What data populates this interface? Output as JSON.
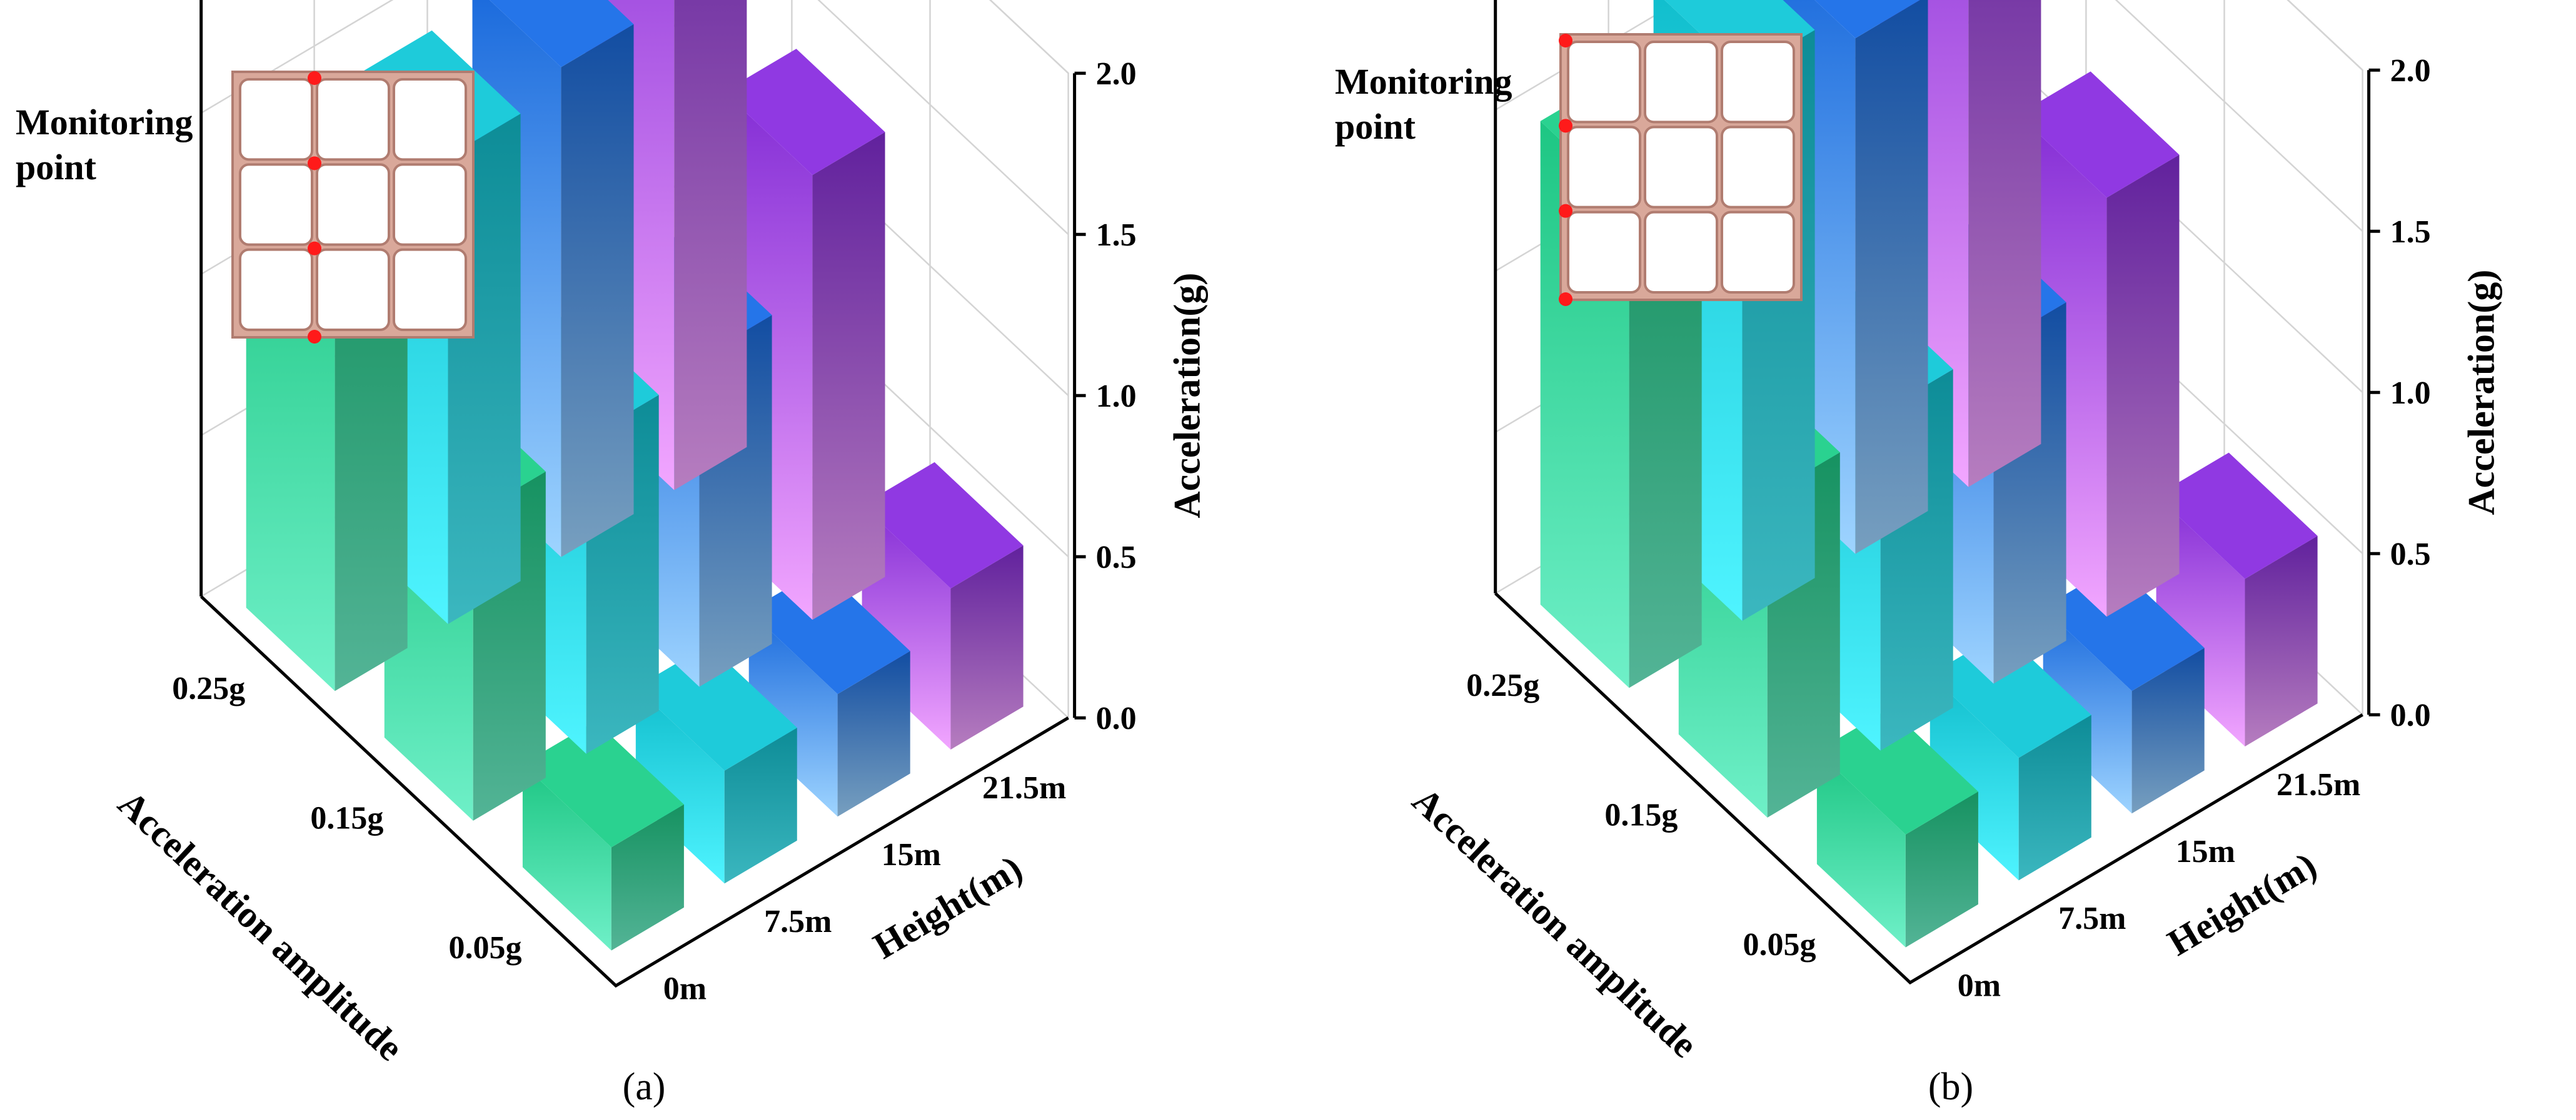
{
  "chart_data": [
    {
      "type": "bar",
      "panel_label": "(a)",
      "inset_title_lines": [
        "Monitoring",
        "point"
      ],
      "monitoring_points_side": "center-left column",
      "zlabel": "Acceleration(g)",
      "zlim": [
        0,
        2.0
      ],
      "zticks": [
        "0.0",
        "0.5",
        "1.0",
        "1.5",
        "2.0"
      ],
      "xlabel": "Acceleration amplitude",
      "x_categories": [
        "0.25g",
        "0.15g",
        "0.05g"
      ],
      "ylabel": "Height(m)",
      "y_categories": [
        "0m",
        "7.5m",
        "15m",
        "21.5m"
      ],
      "series": [
        {
          "x": "0.25g",
          "values": [
            1.37,
            1.45,
            1.52,
            1.95
          ]
        },
        {
          "x": "0.15g",
          "values": [
            0.95,
            0.98,
            1.02,
            1.38
          ]
        },
        {
          "x": "0.05g",
          "values": [
            0.32,
            0.35,
            0.38,
            0.5
          ]
        }
      ],
      "colors": {
        "0m": "#1fd08a",
        "7.5m": "#12c8d8",
        "15m": "#1a6ee8",
        "21.5m": "#8a2fe0"
      },
      "grid": true
    },
    {
      "type": "bar",
      "panel_label": "(b)",
      "inset_title_lines": [
        "Monitoring",
        "point"
      ],
      "monitoring_points_side": "left column",
      "zlabel": "Acceleration(g)",
      "zlim": [
        0,
        2.0
      ],
      "zticks": [
        "0.0",
        "0.5",
        "1.0",
        "1.5",
        "2.0"
      ],
      "xlabel": "Acceleration amplitude",
      "x_categories": [
        "0.25g",
        "0.15g",
        "0.05g"
      ],
      "ylabel": "Height(m)",
      "y_categories": [
        "0m",
        "7.5m",
        "15m",
        "21.5m"
      ],
      "series": [
        {
          "x": "0.25g",
          "values": [
            1.5,
            1.7,
            1.6,
            1.95
          ]
        },
        {
          "x": "0.15g",
          "values": [
            1.0,
            1.05,
            1.05,
            1.3
          ]
        },
        {
          "x": "0.05g",
          "values": [
            0.35,
            0.38,
            0.38,
            0.52
          ]
        }
      ],
      "colors": {
        "0m": "#1fd08a",
        "7.5m": "#12c8d8",
        "15m": "#1a6ee8",
        "21.5m": "#8a2fe0"
      },
      "grid": true
    }
  ]
}
